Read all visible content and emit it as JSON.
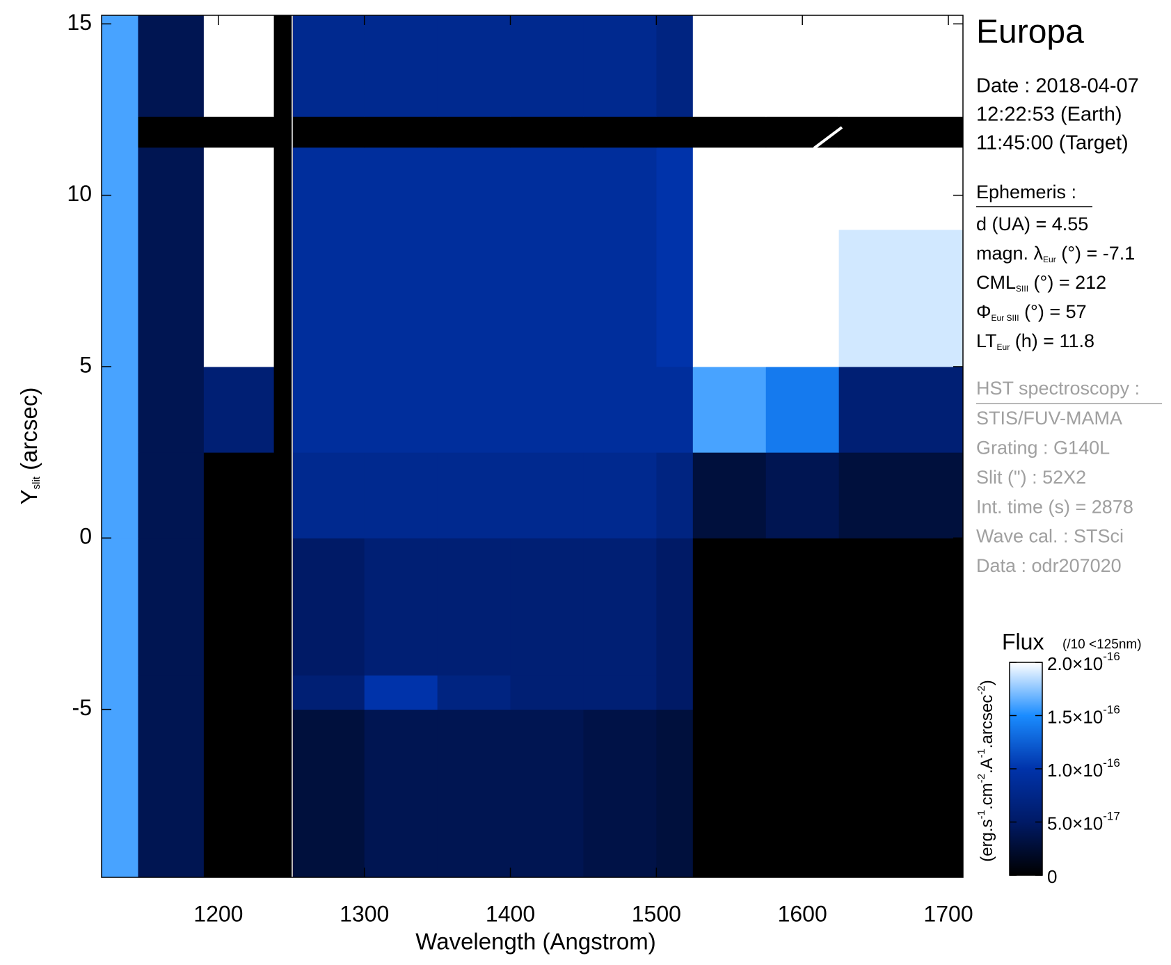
{
  "chart_data": {
    "type": "heatmap",
    "title": "Europa",
    "x_label": "Wavelength (Angstrom)",
    "y_label": {
      "text": "Y",
      "sub": "slit",
      "rest": " (arcsec)"
    },
    "xlim": [
      1120,
      1710
    ],
    "ylim": [
      -9.9,
      15.25
    ],
    "xticks": [
      1200,
      1300,
      1400,
      1500,
      1600,
      1700
    ],
    "yticks": [
      15,
      10,
      5,
      0,
      -5
    ],
    "x_edges": [
      1120,
      1145,
      1190,
      1238,
      1250,
      1300,
      1350,
      1400,
      1450,
      1500,
      1525,
      1575,
      1625,
      1710
    ],
    "y_edges": [
      -9.9,
      -5,
      -4,
      0,
      2.5,
      5,
      9,
      11.4,
      12.3,
      15.25
    ],
    "z": [
      [
        1.6e-16,
        4e-17,
        0,
        0,
        3e-17,
        4e-17,
        4e-17,
        4e-17,
        3.5e-17,
        3e-17,
        0,
        0,
        0
      ],
      [
        1.6e-16,
        4e-17,
        0,
        0,
        6e-17,
        1e-16,
        7e-17,
        6e-17,
        6e-17,
        5e-17,
        0,
        0,
        0
      ],
      [
        1.6e-16,
        4e-17,
        0,
        0,
        5e-17,
        6e-17,
        6e-17,
        6e-17,
        6e-17,
        5e-17,
        0,
        0,
        0
      ],
      [
        1.6e-16,
        4e-17,
        0,
        0,
        8e-17,
        8e-17,
        8e-17,
        8e-17,
        8e-17,
        7e-17,
        3e-17,
        4e-17,
        3e-17
      ],
      [
        1.6e-16,
        4e-17,
        6e-17,
        0,
        9e-17,
        9e-17,
        9e-17,
        9e-17,
        9e-17,
        9e-17,
        1.6e-16,
        1.4e-16,
        6e-17
      ],
      [
        1.6e-16,
        4e-17,
        2e-16,
        0,
        9e-17,
        9e-17,
        9e-17,
        9e-17,
        9e-17,
        1e-16,
        2e-16,
        2e-16,
        1.9e-16
      ],
      [
        1.6e-16,
        4e-17,
        2e-16,
        0,
        9e-17,
        9e-17,
        9e-17,
        9e-17,
        9e-17,
        1e-16,
        2e-16,
        2e-16,
        2e-16
      ],
      [
        1.6e-16,
        0,
        0,
        0,
        0,
        0,
        0,
        0,
        0,
        0,
        0,
        0,
        0
      ],
      [
        1.6e-16,
        4e-17,
        2e-16,
        0,
        8e-17,
        8e-17,
        8e-17,
        8e-17,
        8e-17,
        7e-17,
        2e-16,
        2e-16,
        2e-16
      ]
    ],
    "colormap": [
      "#000000",
      "#001a66",
      "#0033aa",
      "#1a8cff",
      "#ffffff"
    ],
    "zlim": [
      0,
      2e-16
    ],
    "colorbar_title": "Flux",
    "colorbar_note": "(/10 <125nm)",
    "colorbar_label": [
      "(erg.s",
      "-1",
      ".cm",
      "-2",
      ".A",
      "-1",
      ".arcsec",
      "-2",
      ")"
    ],
    "zticks": [
      {
        "value": 2e-16,
        "label": "2.0×10",
        "exponent": "-16"
      },
      {
        "value": 1.5e-16,
        "label": "1.5×10",
        "exponent": "-16"
      },
      {
        "value": 1e-16,
        "label": "1.0×10",
        "exponent": "-16"
      },
      {
        "value": 5e-17,
        "label": "5.0×10",
        "exponent": "-17"
      },
      0
    ],
    "date_lines": [
      "Date : 2018-04-07",
      "12:22:53 (Earth)",
      "11:45:00 (Target)"
    ],
    "ephemeris": {
      "heading": "Ephemeris :",
      "items": [
        {
          "text": "d (UA)     = 4.55"
        },
        {
          "text": "magn. λ",
          "sub": "Eur",
          "rest": " (°)  = -7.1"
        },
        {
          "text": "CML",
          "sub": "SIII",
          "rest": " (°) = 212"
        },
        {
          "text": "Φ",
          "sub": "Eur SIII",
          "rest": " (°) = 57"
        },
        {
          "text": "LT",
          "sub": "Eur",
          "rest": " (h) = 11.8"
        }
      ]
    },
    "instrument": {
      "heading": "HST spectroscopy :",
      "lines": [
        "STIS/FUV-MAMA",
        "Grating : G140L",
        "Slit (\") : 52X2",
        "Int. time (s) = 2878",
        "Wave cal. : STSci",
        "Data : odr207020"
      ]
    }
  }
}
